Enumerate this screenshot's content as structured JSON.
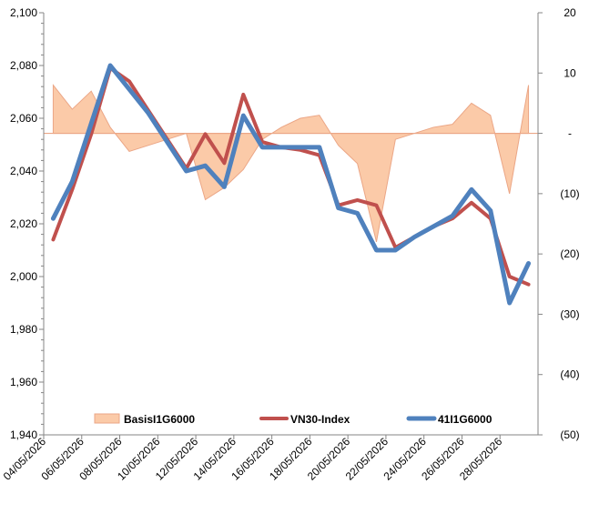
{
  "chart_data": {
    "type": "line",
    "title": "",
    "xlabel": "",
    "ylabel": "",
    "y2label": "",
    "grid": false,
    "legend_position": "bottom",
    "x_tick_labels": [
      "04/05/2026",
      "06/05/2026",
      "08/05/2026",
      "10/05/2026",
      "12/05/2026",
      "14/05/2026",
      "16/05/2026",
      "18/05/2026",
      "20/05/2026",
      "22/05/2026",
      "24/05/2026",
      "26/05/2026",
      "28/05/2026"
    ],
    "ylim": [
      1940,
      2100
    ],
    "y_ticks": [
      1940,
      1960,
      1980,
      2000,
      2020,
      2040,
      2060,
      2080,
      2100
    ],
    "y_tick_labels": [
      "1,940",
      "1,960",
      "1,980",
      "2,000",
      "2,020",
      "2,040",
      "2,060",
      "2,080",
      "2,100"
    ],
    "y2lim": [
      -50,
      20
    ],
    "y2_ticks": [
      20,
      10,
      0,
      -10,
      -20,
      -30,
      -40,
      -50
    ],
    "y2_tick_labels": [
      "20",
      "10",
      "-",
      "(10)",
      "(20)",
      "(30)",
      "(40)",
      "(50)"
    ],
    "dates": [
      "04/05/2026",
      "05/05/2026",
      "06/05/2026",
      "07/05/2026",
      "08/05/2026",
      "09/05/2026",
      "10/05/2026",
      "11/05/2026",
      "12/05/2026",
      "13/05/2026",
      "14/05/2026",
      "15/05/2026",
      "16/05/2026",
      "17/05/2026",
      "18/05/2026",
      "19/05/2026",
      "20/05/2026",
      "21/05/2026",
      "22/05/2026",
      "23/05/2026",
      "24/05/2026",
      "25/05/2026",
      "26/05/2026",
      "27/05/2026",
      "28/05/2026",
      "29/05/2026"
    ],
    "series": [
      {
        "name": "BasisI1G6000",
        "kind": "area",
        "axis": "right",
        "color": "#fbcaa8",
        "stroke": "#eba686",
        "values": [
          8,
          4,
          7,
          1,
          -3,
          -2,
          -1,
          0,
          -11,
          -9,
          -6,
          -1,
          1,
          2.5,
          3,
          -2,
          -5,
          -18,
          -1,
          0,
          1,
          1.5,
          5,
          3,
          -10,
          8
        ]
      },
      {
        "name": "VN30-Index",
        "kind": "line",
        "axis": "left",
        "color": "#c0504d",
        "values": [
          2014,
          2033,
          2054,
          2079,
          2074,
          2063,
          2052,
          2041,
          2054,
          2043,
          2069,
          2051,
          2049,
          2048,
          2046,
          2027,
          2029,
          2027,
          2011,
          2015,
          2019,
          2022,
          2028,
          2022,
          2000,
          1997
        ]
      },
      {
        "name": "41I1G6000",
        "kind": "line",
        "axis": "left",
        "color": "#4f81bd",
        "values": [
          2022,
          2036,
          2058,
          2080,
          2071,
          2062,
          2051,
          2040,
          2042,
          2034,
          2061,
          2049,
          2049,
          2049,
          2049,
          2026,
          2024,
          2010,
          2010,
          2015,
          2019,
          2023,
          2033,
          2025,
          1990,
          2005
        ]
      }
    ]
  }
}
